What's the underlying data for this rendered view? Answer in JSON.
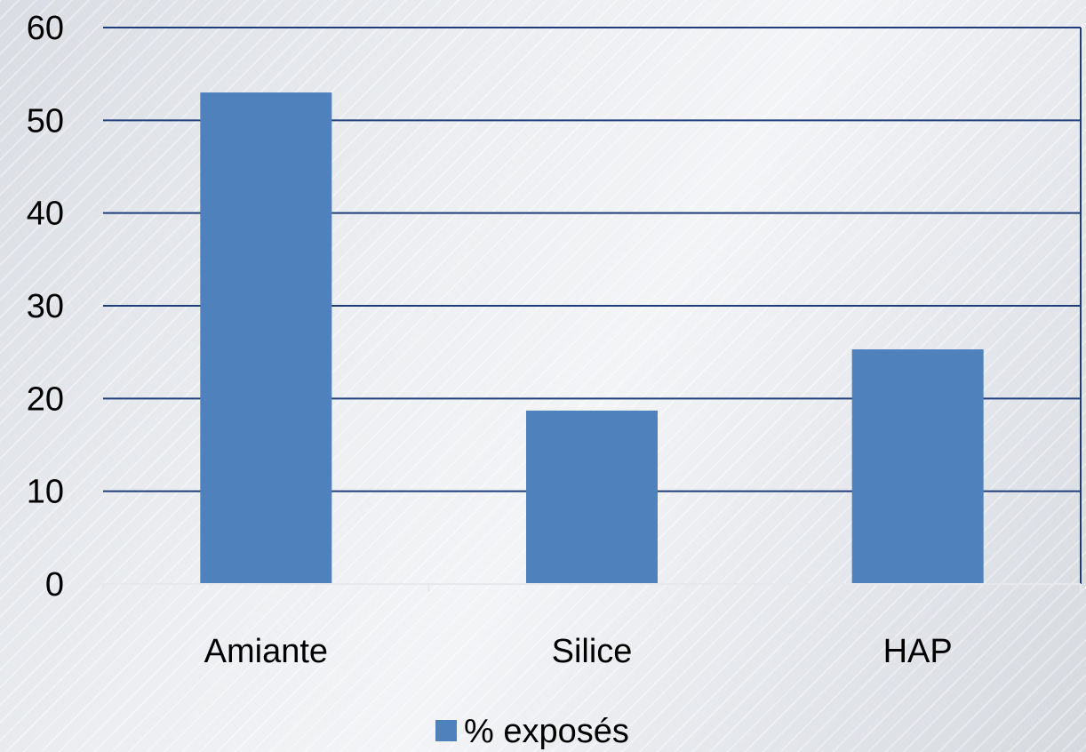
{
  "chart_data": {
    "type": "bar",
    "categories": [
      "Amiante",
      "Silice",
      "HAP"
    ],
    "series": [
      {
        "name": "% exposés",
        "values": [
          53,
          18.7,
          25.3
        ],
        "color": "#4f81bd"
      }
    ],
    "ylim": [
      0,
      60
    ],
    "yticks": [
      "0",
      "10",
      "20",
      "30",
      "40",
      "50",
      "60"
    ],
    "grid": true,
    "grid_color": "#1f3d7a",
    "legend_position": "bottom"
  }
}
